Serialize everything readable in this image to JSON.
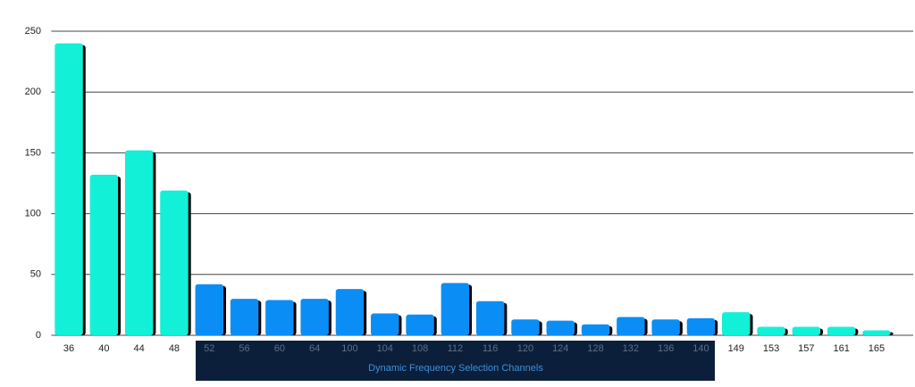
{
  "chart_data": {
    "type": "bar",
    "categories": [
      "36",
      "40",
      "44",
      "48",
      "52",
      "56",
      "60",
      "64",
      "100",
      "104",
      "108",
      "112",
      "116",
      "120",
      "124",
      "128",
      "132",
      "136",
      "140",
      "149",
      "153",
      "157",
      "161",
      "165"
    ],
    "values": [
      240,
      132,
      152,
      119,
      42,
      30,
      29,
      30,
      38,
      18,
      17,
      43,
      28,
      13,
      12,
      9,
      15,
      13,
      14,
      19,
      7,
      7,
      7,
      4
    ],
    "colors": [
      "#12f0d8",
      "#12f0d8",
      "#12f0d8",
      "#12f0d8",
      "#0a8ef5",
      "#0a8ef5",
      "#0a8ef5",
      "#0a8ef5",
      "#0a8ef5",
      "#0a8ef5",
      "#0a8ef5",
      "#0a8ef5",
      "#0a8ef5",
      "#0a8ef5",
      "#0a8ef5",
      "#0a8ef5",
      "#0a8ef5",
      "#0a8ef5",
      "#0a8ef5",
      "#12f0d8",
      "#12f0d8",
      "#12f0d8",
      "#12f0d8",
      "#12f0d8"
    ],
    "annotation": "Dynamic Frequency Selection Channels",
    "ylim": [
      0,
      250
    ],
    "yticks": [
      0,
      50,
      100,
      150,
      200,
      250
    ],
    "grid": true
  }
}
